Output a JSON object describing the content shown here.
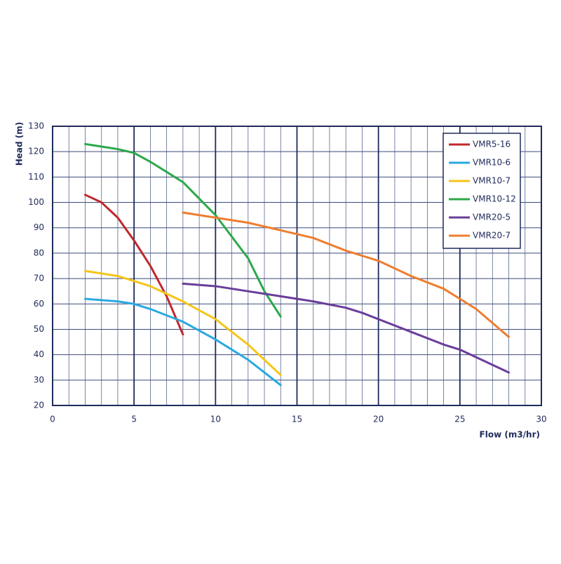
{
  "chart_data": {
    "type": "line",
    "x_label": "Flow (m3/hr)",
    "y_label": "Head (m)",
    "xlim": [
      0,
      30
    ],
    "xticks": [
      0,
      5,
      10,
      15,
      20,
      25,
      30
    ],
    "ylim": [
      20,
      130
    ],
    "yticks": [
      20,
      30,
      40,
      50,
      60,
      70,
      80,
      90,
      100,
      110,
      120,
      130
    ],
    "grid": true,
    "legend": "upper right",
    "series": [
      {
        "name": "VMR5-16",
        "color": "#c0282d",
        "x": [
          2,
          3,
          4,
          5,
          6,
          7,
          8
        ],
        "values": [
          103,
          100,
          94,
          85,
          75,
          63,
          48
        ]
      },
      {
        "name": "VMR10-6",
        "color": "#29a9e0",
        "x": [
          2,
          4,
          5,
          6,
          8,
          10,
          12,
          14
        ],
        "values": [
          62,
          61,
          60,
          58,
          53,
          46,
          38,
          28
        ]
      },
      {
        "name": "VMR10-7",
        "color": "#f5c518",
        "x": [
          2,
          4,
          5,
          6,
          8,
          10,
          12,
          14
        ],
        "values": [
          73,
          71,
          69,
          67,
          61,
          54,
          44,
          32
        ]
      },
      {
        "name": "VMR10-12",
        "color": "#2ca84a",
        "x": [
          2,
          4,
          5,
          6,
          8,
          10,
          12,
          13,
          14
        ],
        "values": [
          123,
          121,
          119.5,
          116,
          108,
          95,
          78,
          65,
          55
        ]
      },
      {
        "name": "VMR20-5",
        "color": "#6a3d9a",
        "x": [
          8,
          10,
          12,
          14,
          16,
          18,
          19,
          20,
          22,
          24,
          25,
          26,
          28
        ],
        "values": [
          68,
          67,
          65,
          63,
          61,
          58.5,
          56.5,
          54,
          49,
          44,
          42,
          39,
          33
        ]
      },
      {
        "name": "VMR20-7",
        "color": "#ef7d2e",
        "x": [
          8,
          10,
          12,
          14,
          16,
          18,
          20,
          22,
          24,
          25,
          26,
          28
        ],
        "values": [
          96,
          94,
          92,
          89,
          86,
          81,
          77,
          71,
          66,
          62,
          58,
          47
        ]
      }
    ]
  }
}
